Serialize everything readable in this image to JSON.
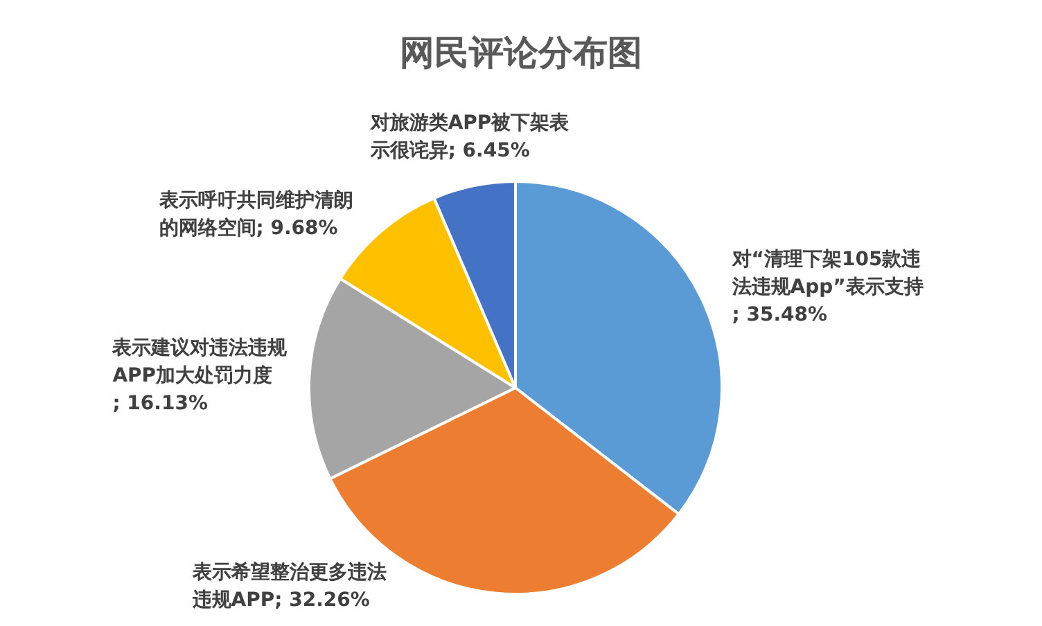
{
  "chart_data": {
    "type": "pie",
    "title": "网民评论分布图",
    "categories": [
      "对“清理下架105款违法违规App”表示支持",
      "表示希望整治更多违法违规APP",
      "表示建议对违法违规APP加大处罚力度",
      "表示呼吁共同维护清朗的网络空间",
      "对旅游类APP被下架表示很诧异"
    ],
    "values": [
      35.48,
      32.26,
      16.13,
      9.68,
      6.45
    ],
    "colors": [
      "#5b9bd5",
      "#ed7d31",
      "#a5a5a5",
      "#ffc000",
      "#4472c4"
    ],
    "value_labels": [
      "; 35.48%",
      "; 32.26%",
      "; 16.13%",
      "; 9.68%",
      "; 6.45%"
    ],
    "legend": false
  }
}
